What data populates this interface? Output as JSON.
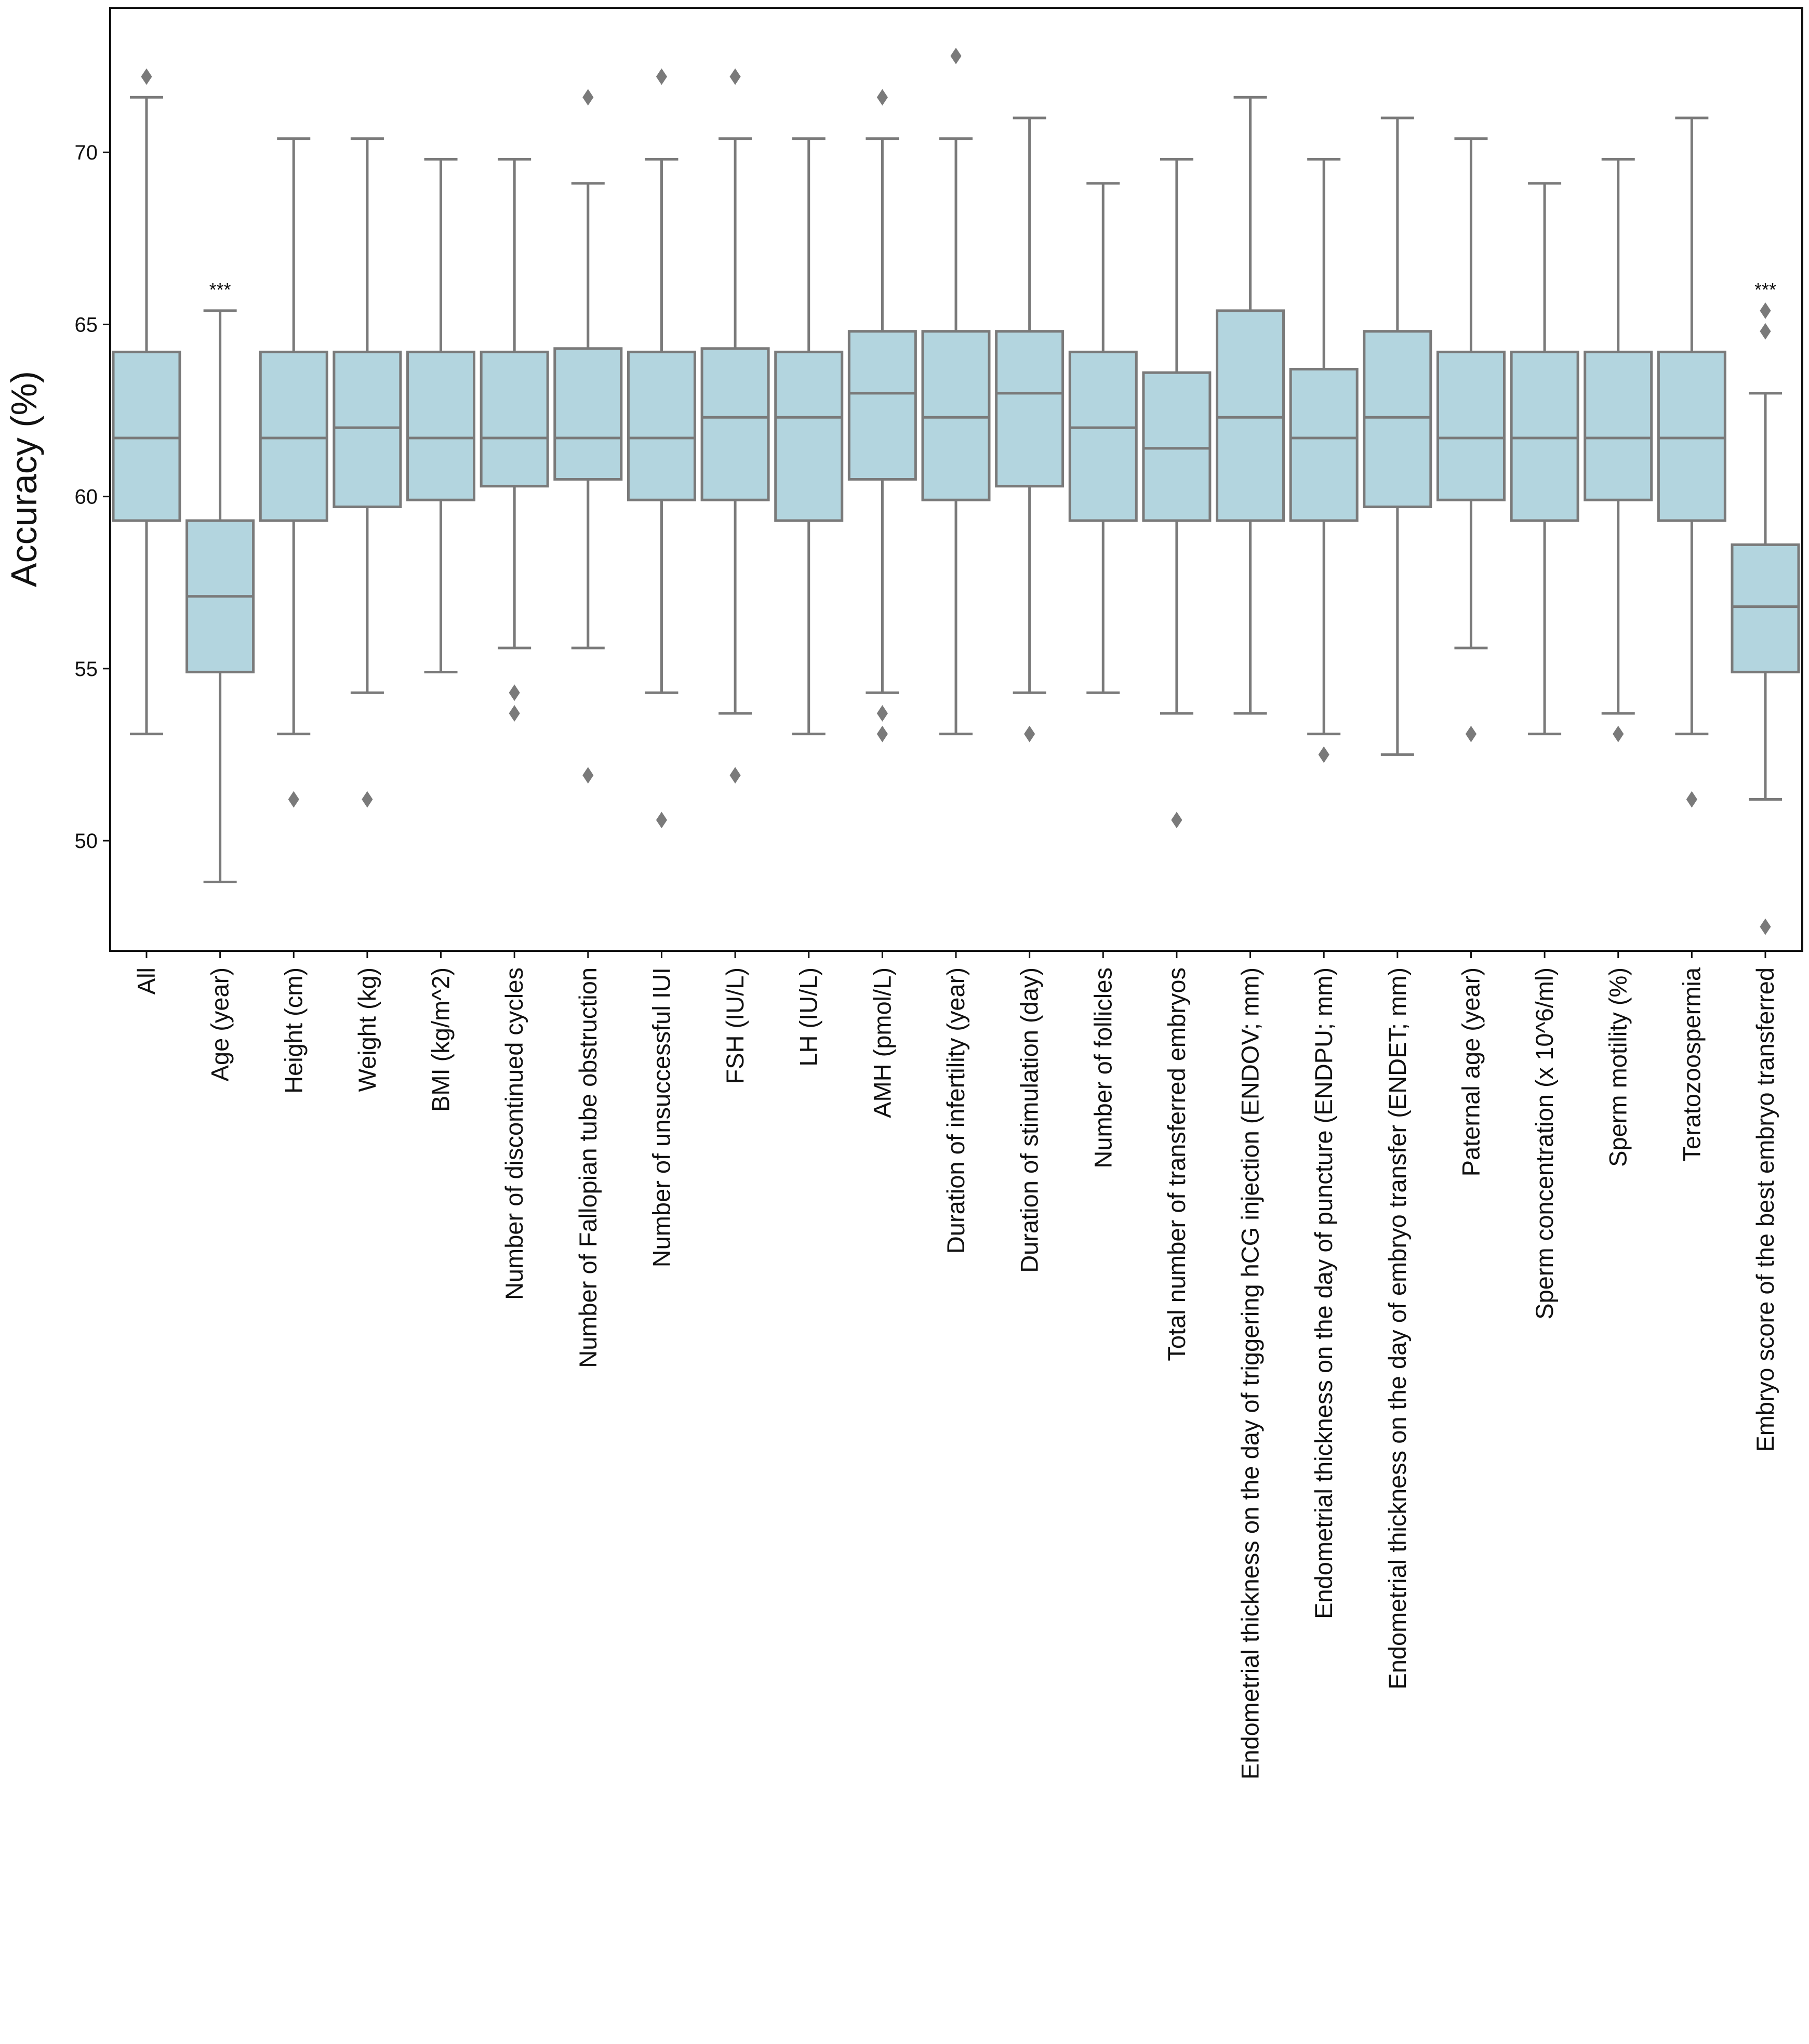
{
  "chart_data": {
    "type": "box",
    "ylabel": "Accuracy (%)",
    "xlabel": "",
    "ylim": [
      46.8,
      74.2
    ],
    "yticks": [
      50,
      55,
      60,
      65,
      70
    ],
    "grid": false,
    "box_fill": "#b3d5df",
    "line_color": "#7a7a7a",
    "categories": [
      "All",
      "Age (year)",
      "Height (cm)",
      "Weight (kg)",
      "BMI (kg/m^2)",
      "Number of discontinued cycles",
      "Number of Fallopian tube obstruction",
      "Number of unsuccessful IUI",
      "FSH (IU/L)",
      "LH (IU/L)",
      "AMH (pmol/L)",
      "Duration of infertility (year)",
      "Duration of stimulation (day)",
      "Number of follicles",
      "Total number of transferred embryos",
      "Endometrial thickness on the day of triggering hCG injection (ENDOV; mm)",
      "Endometrial thickness on the day of puncture (ENDPU; mm)",
      "Endometrial thickness on the day of embryo transfer (ENDET; mm)",
      "Paternal age (year)",
      "Sperm concentration (x 10^6/ml)",
      "Sperm motility (%)",
      "Teratozoospermia",
      "Embryo score of the best embryo transferred"
    ],
    "boxes": [
      {
        "whislo": 53.1,
        "q1": 59.3,
        "med": 61.7,
        "q3": 64.2,
        "whishi": 71.6,
        "fliers": [
          72.2
        ]
      },
      {
        "whislo": 48.8,
        "q1": 54.9,
        "med": 57.1,
        "q3": 59.3,
        "whishi": 65.4,
        "fliers": []
      },
      {
        "whislo": 53.1,
        "q1": 59.3,
        "med": 61.7,
        "q3": 64.2,
        "whishi": 70.4,
        "fliers": [
          51.2
        ]
      },
      {
        "whislo": 54.3,
        "q1": 59.7,
        "med": 62.0,
        "q3": 64.2,
        "whishi": 70.4,
        "fliers": [
          51.2
        ]
      },
      {
        "whislo": 54.9,
        "q1": 59.9,
        "med": 61.7,
        "q3": 64.2,
        "whishi": 69.8,
        "fliers": []
      },
      {
        "whislo": 55.6,
        "q1": 60.3,
        "med": 61.7,
        "q3": 64.2,
        "whishi": 69.8,
        "fliers": [
          54.3,
          53.7
        ]
      },
      {
        "whislo": 55.6,
        "q1": 60.5,
        "med": 61.7,
        "q3": 64.3,
        "whishi": 69.1,
        "fliers": [
          71.6,
          51.9
        ]
      },
      {
        "whislo": 54.3,
        "q1": 59.9,
        "med": 61.7,
        "q3": 64.2,
        "whishi": 69.8,
        "fliers": [
          72.2,
          50.6
        ]
      },
      {
        "whislo": 53.7,
        "q1": 59.9,
        "med": 62.3,
        "q3": 64.3,
        "whishi": 70.4,
        "fliers": [
          72.2,
          51.9
        ]
      },
      {
        "whislo": 53.1,
        "q1": 59.3,
        "med": 62.3,
        "q3": 64.2,
        "whishi": 70.4,
        "fliers": []
      },
      {
        "whislo": 54.3,
        "q1": 60.5,
        "med": 63.0,
        "q3": 64.8,
        "whishi": 70.4,
        "fliers": [
          71.6,
          53.7,
          53.1
        ]
      },
      {
        "whislo": 53.1,
        "q1": 59.9,
        "med": 62.3,
        "q3": 64.8,
        "whishi": 70.4,
        "fliers": [
          72.8
        ]
      },
      {
        "whislo": 54.3,
        "q1": 60.3,
        "med": 63.0,
        "q3": 64.8,
        "whishi": 71.0,
        "fliers": [
          53.1
        ]
      },
      {
        "whislo": 54.3,
        "q1": 59.3,
        "med": 62.0,
        "q3": 64.2,
        "whishi": 69.1,
        "fliers": []
      },
      {
        "whislo": 53.7,
        "q1": 59.3,
        "med": 61.4,
        "q3": 63.6,
        "whishi": 69.8,
        "fliers": [
          50.6
        ]
      },
      {
        "whislo": 53.7,
        "q1": 59.3,
        "med": 62.3,
        "q3": 65.4,
        "whishi": 71.6,
        "fliers": []
      },
      {
        "whislo": 53.1,
        "q1": 59.3,
        "med": 61.7,
        "q3": 63.7,
        "whishi": 69.8,
        "fliers": [
          52.5
        ]
      },
      {
        "whislo": 52.5,
        "q1": 59.7,
        "med": 62.3,
        "q3": 64.8,
        "whishi": 71.0,
        "fliers": []
      },
      {
        "whislo": 55.6,
        "q1": 59.9,
        "med": 61.7,
        "q3": 64.2,
        "whishi": 70.4,
        "fliers": [
          53.1
        ]
      },
      {
        "whislo": 53.1,
        "q1": 59.3,
        "med": 61.7,
        "q3": 64.2,
        "whishi": 69.1,
        "fliers": []
      },
      {
        "whislo": 53.7,
        "q1": 59.9,
        "med": 61.7,
        "q3": 64.2,
        "whishi": 69.8,
        "fliers": [
          53.1
        ]
      },
      {
        "whislo": 53.1,
        "q1": 59.3,
        "med": 61.7,
        "q3": 64.2,
        "whishi": 71.0,
        "fliers": [
          51.2
        ]
      },
      {
        "whislo": 51.2,
        "q1": 54.9,
        "med": 56.8,
        "q3": 58.6,
        "whishi": 63.0,
        "fliers": [
          65.4,
          64.8,
          47.5
        ]
      }
    ],
    "annotations": [
      {
        "category": "Age (year)",
        "text": "***",
        "y": 66.0
      },
      {
        "category": "Embryo score of the best embryo transferred",
        "text": "***",
        "y": 66.0
      }
    ]
  }
}
